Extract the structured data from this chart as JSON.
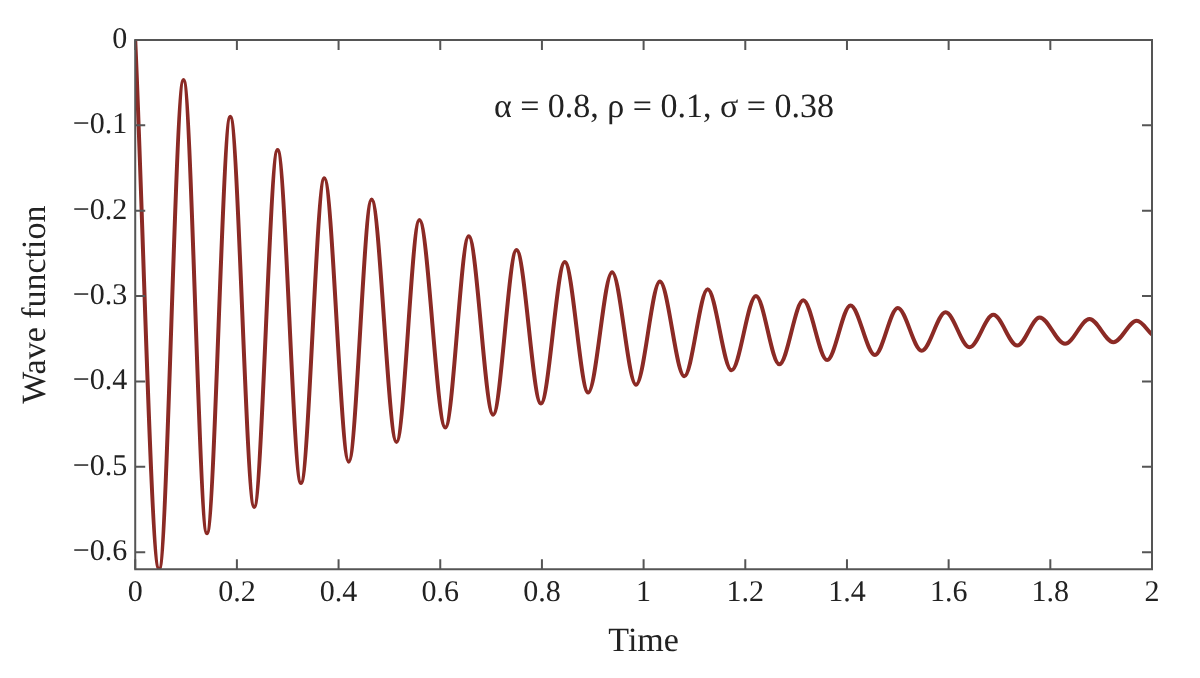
{
  "chart_data": {
    "type": "line",
    "xlabel": "Time",
    "ylabel": "Wave function",
    "annotations": [
      "α = 0.8, ρ = 0.1, σ = 0.38"
    ],
    "x": [
      0,
      0.047,
      0.095,
      0.141,
      0.187,
      0.234,
      0.28,
      0.326,
      0.372,
      0.42,
      0.465,
      0.514,
      0.559,
      0.61,
      0.656,
      0.704,
      0.75,
      0.798,
      0.845,
      0.891,
      0.938,
      0.985,
      1.032,
      1.08,
      1.126,
      1.173,
      1.221,
      1.267,
      1.314,
      1.361,
      1.407,
      1.455,
      1.5,
      1.547,
      1.594,
      1.641,
      1.688,
      1.735,
      1.779,
      1.829,
      1.877,
      1.924,
      1.97,
      2
    ],
    "series": [
      {
        "color": "#8b2a25",
        "values": [
          0,
          -0.62,
          -0.047,
          -0.578,
          -0.09,
          -0.547,
          -0.129,
          -0.519,
          -0.162,
          -0.494,
          -0.187,
          -0.471,
          -0.211,
          -0.454,
          -0.23,
          -0.439,
          -0.246,
          -0.426,
          -0.26,
          -0.413,
          -0.272,
          -0.404,
          -0.283,
          -0.394,
          -0.292,
          -0.387,
          -0.3,
          -0.38,
          -0.305,
          -0.375,
          -0.311,
          -0.369,
          -0.314,
          -0.364,
          -0.319,
          -0.36,
          -0.322,
          -0.358,
          -0.325,
          -0.356,
          -0.327,
          -0.354,
          -0.329,
          -0.345
        ]
      }
    ],
    "xlim": [
      0,
      2
    ],
    "xticks": [
      0,
      0.2,
      0.4,
      0.6,
      0.8,
      1,
      1.2,
      1.4,
      1.6,
      1.8,
      2
    ],
    "ylim": [
      -0.62,
      0
    ],
    "yticks": [
      0,
      {
        "value": -0.1,
        "label": "−0.1"
      },
      {
        "value": -0.2,
        "label": "−0.2"
      },
      {
        "value": -0.3,
        "label": "−0.3"
      },
      {
        "value": -0.4,
        "label": "−0.4"
      },
      {
        "value": -0.5,
        "label": "−0.5"
      },
      {
        "value": -0.6,
        "label": "−0.6"
      }
    ],
    "grid": false,
    "legend": false,
    "marker": "none",
    "line_style": "solid"
  }
}
